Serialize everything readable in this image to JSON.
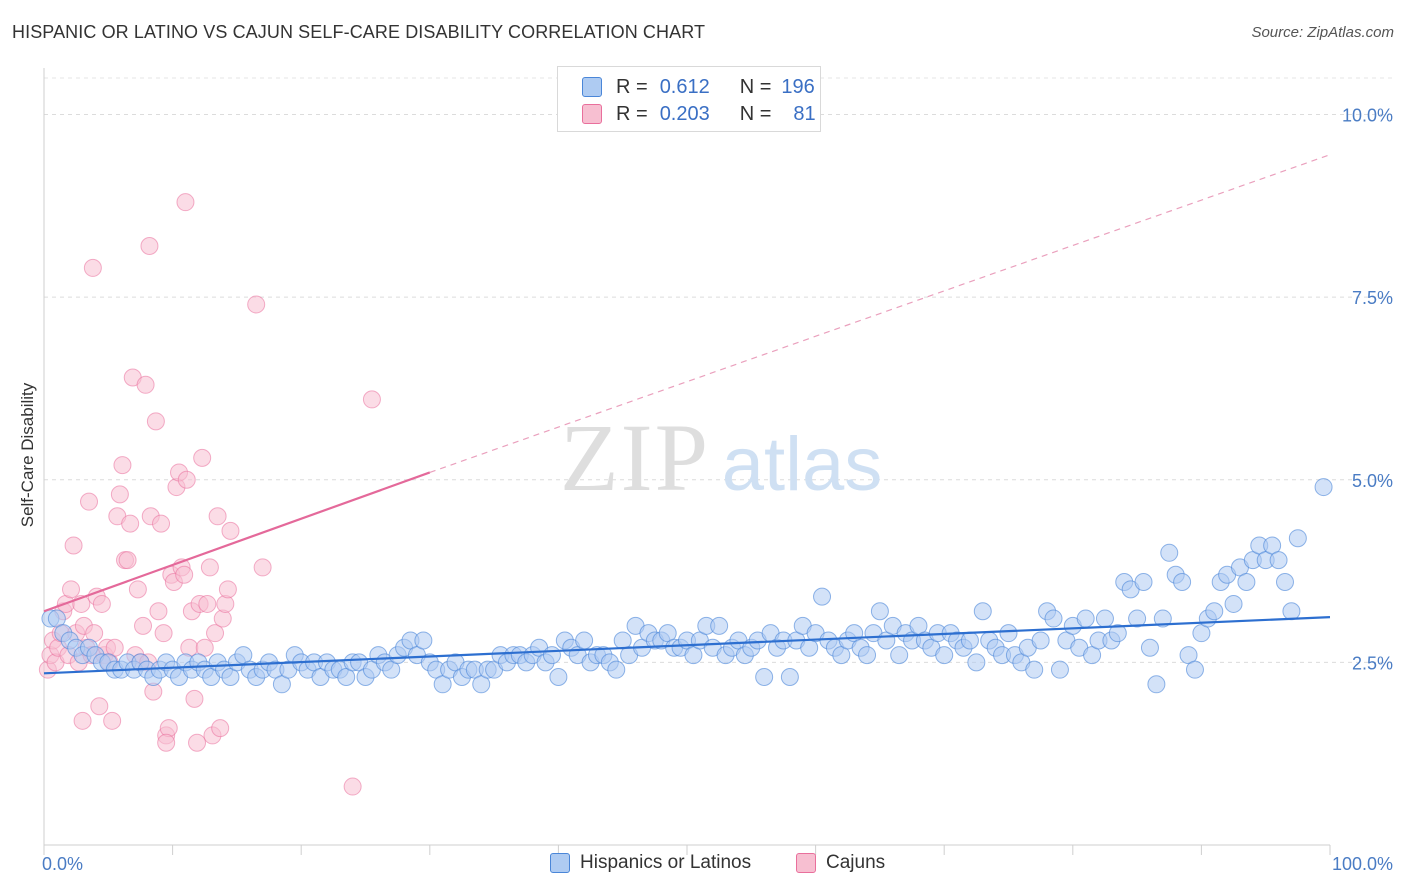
{
  "title": "HISPANIC OR LATINO VS CAJUN SELF-CARE DISABILITY CORRELATION CHART",
  "source": "Source: ZipAtlas.com",
  "watermark": {
    "zip": "ZIP",
    "atlas": "atlas"
  },
  "legend": {
    "series1": {
      "r_label": "R =",
      "r_value": "0.612",
      "n_label": "N =",
      "n_value": "196"
    },
    "series2": {
      "r_label": "R =",
      "r_value": "0.203",
      "n_label": "N =",
      "n_value": "81"
    }
  },
  "colors": {
    "blue": "#4a86d8",
    "blue_fill": "#aecbf2",
    "pink": "#e96f9c",
    "pink_fill": "#f7bfd1",
    "axis_text": "#4a7cc4"
  },
  "chart_data": {
    "type": "scatter",
    "title": "HISPANIC OR LATINO VS CAJUN SELF-CARE DISABILITY CORRELATION CHART",
    "xlabel": "",
    "ylabel": "Self-Care Disability",
    "xlim": [
      0,
      100
    ],
    "ylim": [
      0,
      10.5
    ],
    "x_tick_labels": [
      "0.0%",
      "100.0%"
    ],
    "y_ticks": [
      2.5,
      5.0,
      7.5,
      10.0
    ],
    "y_tick_labels": [
      "2.5%",
      "5.0%",
      "7.5%",
      "10.0%"
    ],
    "grid": true,
    "legend_position": "bottom",
    "series": [
      {
        "name": "Hispanics or Latinos",
        "color": "#4a86d8",
        "trend": {
          "x": [
            0,
            100
          ],
          "y": [
            2.35,
            3.12
          ],
          "dashed": false
        },
        "points": [
          [
            0.5,
            3.1
          ],
          [
            1,
            3.1
          ],
          [
            1.5,
            2.9
          ],
          [
            2,
            2.8
          ],
          [
            2.5,
            2.7
          ],
          [
            3,
            2.6
          ],
          [
            3.5,
            2.7
          ],
          [
            4,
            2.6
          ],
          [
            4.5,
            2.5
          ],
          [
            5,
            2.5
          ],
          [
            5.5,
            2.4
          ],
          [
            6,
            2.4
          ],
          [
            6.5,
            2.5
          ],
          [
            7,
            2.4
          ],
          [
            7.5,
            2.5
          ],
          [
            8,
            2.4
          ],
          [
            8.5,
            2.3
          ],
          [
            9,
            2.4
          ],
          [
            9.5,
            2.5
          ],
          [
            10,
            2.4
          ],
          [
            10.5,
            2.3
          ],
          [
            11,
            2.5
          ],
          [
            11.5,
            2.4
          ],
          [
            12,
            2.5
          ],
          [
            12.5,
            2.4
          ],
          [
            13,
            2.3
          ],
          [
            13.5,
            2.5
          ],
          [
            14,
            2.4
          ],
          [
            14.5,
            2.3
          ],
          [
            15,
            2.5
          ],
          [
            15.5,
            2.6
          ],
          [
            16,
            2.4
          ],
          [
            16.5,
            2.3
          ],
          [
            17,
            2.4
          ],
          [
            17.5,
            2.5
          ],
          [
            18,
            2.4
          ],
          [
            18.5,
            2.2
          ],
          [
            19,
            2.4
          ],
          [
            19.5,
            2.6
          ],
          [
            20,
            2.5
          ],
          [
            20.5,
            2.4
          ],
          [
            21,
            2.5
          ],
          [
            21.5,
            2.3
          ],
          [
            22,
            2.5
          ],
          [
            22.5,
            2.4
          ],
          [
            23,
            2.4
          ],
          [
            23.5,
            2.3
          ],
          [
            24,
            2.5
          ],
          [
            24.5,
            2.5
          ],
          [
            25,
            2.3
          ],
          [
            25.5,
            2.4
          ],
          [
            26,
            2.6
          ],
          [
            26.5,
            2.5
          ],
          [
            27,
            2.4
          ],
          [
            27.5,
            2.6
          ],
          [
            28,
            2.7
          ],
          [
            28.5,
            2.8
          ],
          [
            29,
            2.6
          ],
          [
            29.5,
            2.8
          ],
          [
            30,
            2.5
          ],
          [
            30.5,
            2.4
          ],
          [
            31,
            2.2
          ],
          [
            31.5,
            2.4
          ],
          [
            32,
            2.5
          ],
          [
            32.5,
            2.3
          ],
          [
            33,
            2.4
          ],
          [
            33.5,
            2.4
          ],
          [
            34,
            2.2
          ],
          [
            34.5,
            2.4
          ],
          [
            35,
            2.4
          ],
          [
            35.5,
            2.6
          ],
          [
            36,
            2.5
          ],
          [
            36.5,
            2.6
          ],
          [
            37,
            2.6
          ],
          [
            37.5,
            2.5
          ],
          [
            38,
            2.6
          ],
          [
            38.5,
            2.7
          ],
          [
            39,
            2.5
          ],
          [
            39.5,
            2.6
          ],
          [
            40,
            2.3
          ],
          [
            40.5,
            2.8
          ],
          [
            41,
            2.7
          ],
          [
            41.5,
            2.6
          ],
          [
            42,
            2.8
          ],
          [
            42.5,
            2.5
          ],
          [
            43,
            2.6
          ],
          [
            43.5,
            2.6
          ],
          [
            44,
            2.5
          ],
          [
            44.5,
            2.4
          ],
          [
            45,
            2.8
          ],
          [
            45.5,
            2.6
          ],
          [
            46,
            3.0
          ],
          [
            46.5,
            2.7
          ],
          [
            47,
            2.9
          ],
          [
            47.5,
            2.8
          ],
          [
            48,
            2.8
          ],
          [
            48.5,
            2.9
          ],
          [
            49,
            2.7
          ],
          [
            49.5,
            2.7
          ],
          [
            50,
            2.8
          ],
          [
            50.5,
            2.6
          ],
          [
            51,
            2.8
          ],
          [
            51.5,
            3.0
          ],
          [
            52,
            2.7
          ],
          [
            52.5,
            3.0
          ],
          [
            53,
            2.6
          ],
          [
            53.5,
            2.7
          ],
          [
            54,
            2.8
          ],
          [
            54.5,
            2.6
          ],
          [
            55,
            2.7
          ],
          [
            55.5,
            2.8
          ],
          [
            56,
            2.3
          ],
          [
            56.5,
            2.9
          ],
          [
            57,
            2.7
          ],
          [
            57.5,
            2.8
          ],
          [
            58,
            2.3
          ],
          [
            58.5,
            2.8
          ],
          [
            59,
            3.0
          ],
          [
            59.5,
            2.7
          ],
          [
            60,
            2.9
          ],
          [
            60.5,
            3.4
          ],
          [
            61,
            2.8
          ],
          [
            61.5,
            2.7
          ],
          [
            62,
            2.6
          ],
          [
            62.5,
            2.8
          ],
          [
            63,
            2.9
          ],
          [
            63.5,
            2.7
          ],
          [
            64,
            2.6
          ],
          [
            64.5,
            2.9
          ],
          [
            65,
            3.2
          ],
          [
            65.5,
            2.8
          ],
          [
            66,
            3.0
          ],
          [
            66.5,
            2.6
          ],
          [
            67,
            2.9
          ],
          [
            67.5,
            2.8
          ],
          [
            68,
            3.0
          ],
          [
            68.5,
            2.8
          ],
          [
            69,
            2.7
          ],
          [
            69.5,
            2.9
          ],
          [
            70,
            2.6
          ],
          [
            70.5,
            2.9
          ],
          [
            71,
            2.8
          ],
          [
            71.5,
            2.7
          ],
          [
            72,
            2.8
          ],
          [
            72.5,
            2.5
          ],
          [
            73,
            3.2
          ],
          [
            73.5,
            2.8
          ],
          [
            74,
            2.7
          ],
          [
            74.5,
            2.6
          ],
          [
            75,
            2.9
          ],
          [
            75.5,
            2.6
          ],
          [
            76,
            2.5
          ],
          [
            76.5,
            2.7
          ],
          [
            77,
            2.4
          ],
          [
            77.5,
            2.8
          ],
          [
            78,
            3.2
          ],
          [
            78.5,
            3.1
          ],
          [
            79,
            2.4
          ],
          [
            79.5,
            2.8
          ],
          [
            80,
            3.0
          ],
          [
            80.5,
            2.7
          ],
          [
            81,
            3.1
          ],
          [
            81.5,
            2.6
          ],
          [
            82,
            2.8
          ],
          [
            82.5,
            3.1
          ],
          [
            83,
            2.8
          ],
          [
            83.5,
            2.9
          ],
          [
            84,
            3.6
          ],
          [
            84.5,
            3.5
          ],
          [
            85,
            3.1
          ],
          [
            85.5,
            3.6
          ],
          [
            86,
            2.7
          ],
          [
            86.5,
            2.2
          ],
          [
            87,
            3.1
          ],
          [
            87.5,
            4.0
          ],
          [
            88,
            3.7
          ],
          [
            88.5,
            3.6
          ],
          [
            89,
            2.6
          ],
          [
            89.5,
            2.4
          ],
          [
            90,
            2.9
          ],
          [
            90.5,
            3.1
          ],
          [
            91,
            3.2
          ],
          [
            91.5,
            3.6
          ],
          [
            92,
            3.7
          ],
          [
            92.5,
            3.3
          ],
          [
            93,
            3.8
          ],
          [
            93.5,
            3.6
          ],
          [
            94,
            3.9
          ],
          [
            94.5,
            4.1
          ],
          [
            95,
            3.9
          ],
          [
            95.5,
            4.1
          ],
          [
            96,
            3.9
          ],
          [
            96.5,
            3.6
          ],
          [
            97,
            3.2
          ],
          [
            97.5,
            4.2
          ],
          [
            99.5,
            4.9
          ]
        ]
      },
      {
        "name": "Cajuns",
        "color": "#e96f9c",
        "trend": {
          "x": [
            0,
            30,
            100
          ],
          "y": [
            3.2,
            5.1,
            9.45
          ],
          "dashed_after": 30
        },
        "points": [
          [
            0.3,
            2.4
          ],
          [
            0.5,
            2.6
          ],
          [
            0.7,
            2.8
          ],
          [
            0.9,
            2.5
          ],
          [
            1.1,
            2.7
          ],
          [
            1.3,
            2.9
          ],
          [
            1.5,
            3.2
          ],
          [
            1.7,
            3.3
          ],
          [
            1.9,
            2.6
          ],
          [
            2.1,
            3.5
          ],
          [
            2.3,
            4.1
          ],
          [
            2.5,
            2.9
          ],
          [
            2.7,
            2.5
          ],
          [
            2.9,
            3.3
          ],
          [
            3.1,
            3.0
          ],
          [
            3.3,
            2.7
          ],
          [
            3.5,
            4.7
          ],
          [
            3.7,
            2.6
          ],
          [
            3.9,
            2.9
          ],
          [
            4.1,
            3.4
          ],
          [
            4.3,
            1.9
          ],
          [
            4.5,
            3.3
          ],
          [
            4.7,
            2.6
          ],
          [
            4.9,
            2.7
          ],
          [
            5.1,
            2.5
          ],
          [
            5.3,
            1.7
          ],
          [
            5.5,
            2.7
          ],
          [
            5.7,
            4.5
          ],
          [
            5.9,
            4.8
          ],
          [
            6.1,
            5.2
          ],
          [
            6.3,
            3.9
          ],
          [
            6.5,
            3.9
          ],
          [
            6.7,
            4.4
          ],
          [
            6.9,
            6.4
          ],
          [
            7.1,
            2.6
          ],
          [
            7.3,
            3.5
          ],
          [
            7.5,
            2.5
          ],
          [
            7.7,
            3.0
          ],
          [
            7.9,
            6.3
          ],
          [
            8.1,
            2.5
          ],
          [
            8.3,
            4.5
          ],
          [
            8.5,
            2.1
          ],
          [
            8.7,
            5.8
          ],
          [
            8.9,
            3.2
          ],
          [
            9.1,
            4.4
          ],
          [
            9.3,
            2.9
          ],
          [
            9.5,
            1.5
          ],
          [
            9.7,
            1.6
          ],
          [
            9.9,
            3.7
          ],
          [
            10.1,
            3.6
          ],
          [
            10.3,
            4.9
          ],
          [
            10.5,
            5.1
          ],
          [
            10.7,
            3.8
          ],
          [
            10.9,
            3.7
          ],
          [
            11.1,
            5.0
          ],
          [
            11.3,
            2.7
          ],
          [
            11.5,
            3.2
          ],
          [
            11.7,
            2.0
          ],
          [
            11.9,
            1.4
          ],
          [
            12.1,
            3.3
          ],
          [
            12.3,
            5.3
          ],
          [
            12.5,
            2.7
          ],
          [
            12.7,
            3.3
          ],
          [
            12.9,
            3.8
          ],
          [
            13.1,
            1.5
          ],
          [
            13.3,
            2.9
          ],
          [
            13.5,
            4.5
          ],
          [
            13.7,
            1.6
          ],
          [
            13.9,
            3.1
          ],
          [
            14.1,
            3.3
          ],
          [
            14.3,
            3.5
          ],
          [
            14.5,
            4.3
          ],
          [
            3.8,
            7.9
          ],
          [
            8.2,
            8.2
          ],
          [
            11,
            8.8
          ],
          [
            16.5,
            7.4
          ],
          [
            25.5,
            6.1
          ],
          [
            24,
            0.8
          ],
          [
            3,
            1.7
          ],
          [
            9.5,
            1.4
          ],
          [
            17,
            3.8
          ]
        ]
      }
    ]
  },
  "bottom_legend": {
    "item1": "Hispanics or Latinos",
    "item2": "Cajuns"
  }
}
